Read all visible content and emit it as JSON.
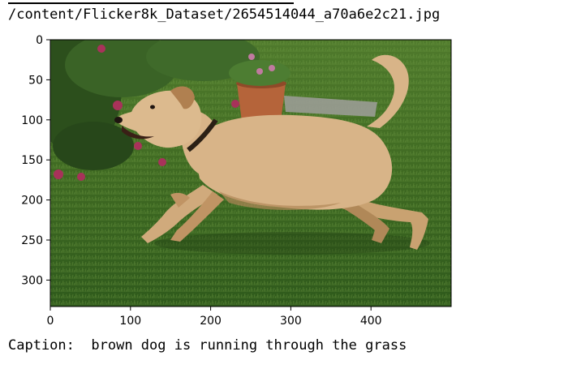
{
  "output": {
    "file_path": "/content/Flicker8k_Dataset/2654514044_a70a6e2c21.jpg",
    "caption_label": "Caption:",
    "caption_text": "brown dog is running through the grass"
  },
  "chart_data": {
    "type": "image",
    "x_ticks": [
      0,
      100,
      200,
      300,
      400
    ],
    "y_ticks": [
      0,
      50,
      100,
      150,
      200,
      250,
      300
    ],
    "xlim": [
      0,
      500
    ],
    "ylim": [
      333,
      0
    ]
  },
  "colors": {
    "grass_dark": "#2f5a1c",
    "grass_light": "#5d8a35",
    "dog_fur": "#d8b488",
    "dog_shadow": "#b08858",
    "pot": "#b5643a",
    "flowers": "#a8325a"
  }
}
